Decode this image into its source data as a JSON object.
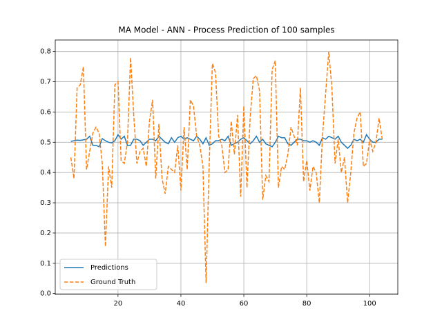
{
  "chart_data": {
    "type": "line",
    "title": "MA Model - ANN - Process Prediction of 100 samples",
    "x": [
      5,
      6,
      7,
      8,
      9,
      10,
      11,
      12,
      13,
      14,
      15,
      16,
      17,
      18,
      19,
      20,
      21,
      22,
      23,
      24,
      25,
      26,
      27,
      28,
      29,
      30,
      31,
      32,
      33,
      34,
      35,
      36,
      37,
      38,
      39,
      40,
      41,
      42,
      43,
      44,
      45,
      46,
      47,
      48,
      49,
      50,
      51,
      52,
      53,
      54,
      55,
      56,
      57,
      58,
      59,
      60,
      61,
      62,
      63,
      64,
      65,
      66,
      67,
      68,
      69,
      70,
      71,
      72,
      73,
      74,
      75,
      76,
      77,
      78,
      79,
      80,
      81,
      82,
      83,
      84,
      85,
      86,
      87,
      88,
      89,
      90,
      91,
      92,
      93,
      94,
      95,
      96,
      97,
      98,
      99,
      100,
      101,
      102,
      103,
      104
    ],
    "series": [
      {
        "name": "Predictions",
        "color": "#1f77b4",
        "dash": false,
        "values": [
          0.503,
          0.505,
          0.507,
          0.506,
          0.508,
          0.51,
          0.52,
          0.49,
          0.49,
          0.485,
          0.512,
          0.505,
          0.5,
          0.498,
          0.505,
          0.525,
          0.51,
          0.52,
          0.49,
          0.49,
          0.51,
          0.51,
          0.505,
          0.49,
          0.5,
          0.51,
          0.51,
          0.505,
          0.52,
          0.51,
          0.5,
          0.495,
          0.515,
          0.5,
          0.515,
          0.52,
          0.51,
          0.515,
          0.51,
          0.505,
          0.52,
          0.51,
          0.495,
          0.515,
          0.49,
          0.495,
          0.505,
          0.505,
          0.51,
          0.505,
          0.52,
          0.49,
          0.495,
          0.5,
          0.51,
          0.515,
          0.505,
          0.495,
          0.505,
          0.52,
          0.5,
          0.51,
          0.495,
          0.49,
          0.485,
          0.5,
          0.52,
          0.515,
          0.515,
          0.495,
          0.49,
          0.5,
          0.51,
          0.51,
          0.505,
          0.505,
          0.5,
          0.505,
          0.5,
          0.49,
          0.515,
          0.51,
          0.52,
          0.515,
          0.51,
          0.52,
          0.5,
          0.49,
          0.48,
          0.49,
          0.51,
          0.505,
          0.51,
          0.5,
          0.525,
          0.51,
          0.5,
          0.5,
          0.51,
          0.51
        ]
      },
      {
        "name": "Ground Truth",
        "color": "#ff7f0e",
        "dash": true,
        "values": [
          0.45,
          0.38,
          0.68,
          0.69,
          0.75,
          0.41,
          0.47,
          0.53,
          0.55,
          0.53,
          0.43,
          0.155,
          0.42,
          0.35,
          0.69,
          0.7,
          0.44,
          0.43,
          0.5,
          0.78,
          0.59,
          0.43,
          0.47,
          0.48,
          0.42,
          0.57,
          0.64,
          0.38,
          0.56,
          0.38,
          0.33,
          0.42,
          0.41,
          0.4,
          0.49,
          0.34,
          0.55,
          0.41,
          0.64,
          0.62,
          0.52,
          0.49,
          0.42,
          0.035,
          0.43,
          0.76,
          0.73,
          0.52,
          0.49,
          0.4,
          0.41,
          0.57,
          0.46,
          0.59,
          0.32,
          0.62,
          0.35,
          0.58,
          0.71,
          0.72,
          0.67,
          0.31,
          0.39,
          0.37,
          0.74,
          0.77,
          0.35,
          0.42,
          0.41,
          0.46,
          0.55,
          0.52,
          0.49,
          0.68,
          0.37,
          0.44,
          0.34,
          0.42,
          0.4,
          0.3,
          0.52,
          0.66,
          0.8,
          0.68,
          0.43,
          0.51,
          0.4,
          0.45,
          0.3,
          0.4,
          0.53,
          0.58,
          0.6,
          0.42,
          0.43,
          0.51,
          0.47,
          0.5,
          0.58,
          0.51
        ]
      }
    ],
    "xlim": [
      0.05,
      108.95
    ],
    "ylim": [
      -0.003,
      0.838
    ],
    "xticks": [
      20,
      40,
      60,
      80,
      100
    ],
    "yticks": [
      {
        "value": 0.0,
        "label": "0.0"
      },
      {
        "value": 0.1,
        "label": "0.1"
      },
      {
        "value": 0.2,
        "label": "0.2"
      },
      {
        "value": 0.3,
        "label": "0.3"
      },
      {
        "value": 0.4,
        "label": "0.4"
      },
      {
        "value": 0.5,
        "label": "0.5"
      },
      {
        "value": 0.6,
        "label": "0.6"
      },
      {
        "value": 0.7,
        "label": "0.7"
      },
      {
        "value": 0.8,
        "label": "0.8"
      }
    ],
    "grid": true,
    "legend": "lower left"
  }
}
